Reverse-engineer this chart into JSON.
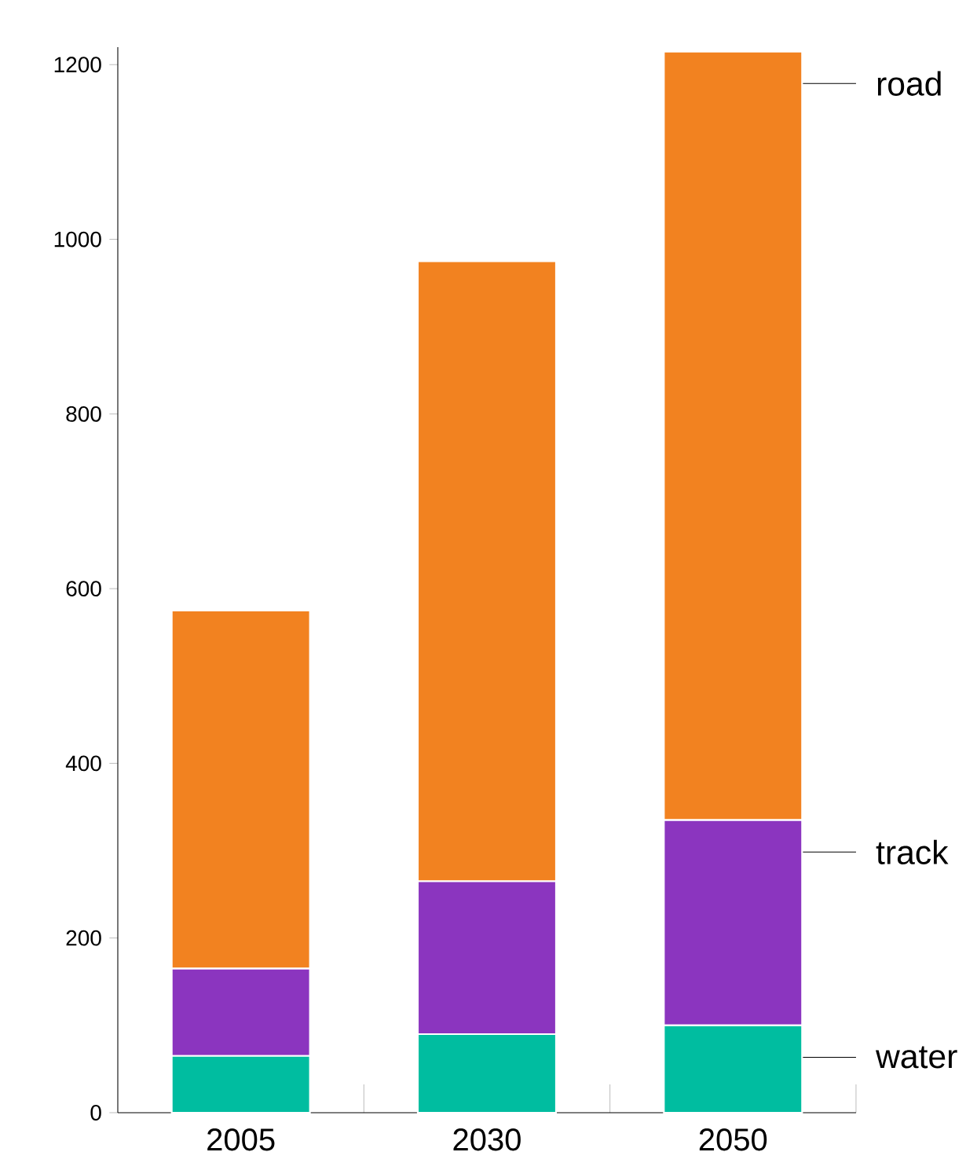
{
  "chart_data": {
    "type": "bar",
    "stacked": true,
    "categories": [
      "2005",
      "2030",
      "2050"
    ],
    "series": [
      {
        "name": "water",
        "color": "#00bda0",
        "values": [
          65,
          90,
          100
        ]
      },
      {
        "name": "track",
        "color": "#8b35bf",
        "values": [
          100,
          175,
          235
        ]
      },
      {
        "name": "road",
        "color": "#f28220",
        "values": [
          410,
          710,
          880
        ]
      }
    ],
    "ylim": [
      0,
      1220
    ],
    "yticks": [
      0,
      200,
      400,
      600,
      800,
      1000,
      1200
    ]
  }
}
